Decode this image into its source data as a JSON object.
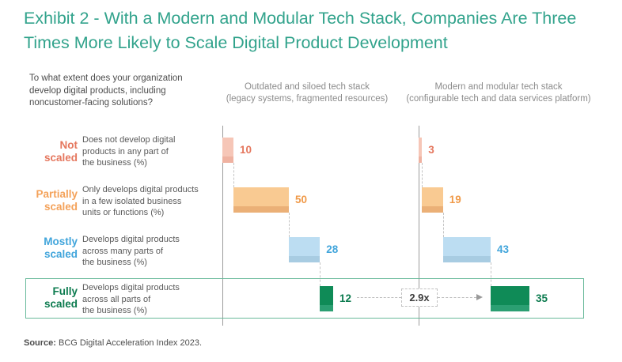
{
  "title": "Exhibit 2 - With a Modern and Modular Tech Stack, Companies Are Three\nTimes More Likely to Scale Digital Product Development",
  "question": "To what extent does your organization\ndevelop digital products, including\nnoncustomer-facing solutions?",
  "columns": [
    {
      "title": "Outdated and siloed tech stack\n(legacy systems, fragmented resources)"
    },
    {
      "title": "Modern and modular tech stack\n(configurable tech and data services platform)"
    }
  ],
  "rows": [
    {
      "label": "Not\nscaled",
      "description": "Does not develop digital\nproducts in any part of\nthe business (%)",
      "label_color": "#E5775E",
      "bar_color": "#F6C6B7",
      "band_color": "#EFB2A1",
      "value_color": "#E5775E"
    },
    {
      "label": "Partially\nscaled",
      "description": "Only develops digital products\nin a few isolated business\nunits or functions (%)",
      "label_color": "#F4A25A",
      "bar_color": "#F9CA92",
      "band_color": "#EBB077",
      "value_color": "#F09A49"
    },
    {
      "label": "Mostly\nscaled",
      "description": "Develops digital products\nacross many parts of\nthe business (%)",
      "label_color": "#41A5DB",
      "bar_color": "#BCDDF2",
      "band_color": "#A8CCE2",
      "value_color": "#41A5DB"
    },
    {
      "label": "Fully\nscaled",
      "description": "Develops digital products\nacross all parts of\nthe business (%)",
      "label_color": "#0C7B4F",
      "bar_color": "#0F8B57",
      "band_color": "#2B9F72",
      "value_color": "#0C7B4F"
    }
  ],
  "chart_data": {
    "type": "bar",
    "subtype": "waterfall",
    "orientation": "horizontal",
    "title": "Exhibit 2 - With a Modern and Modular Tech Stack, Companies Are Three Times More Likely to Scale Digital Product Development",
    "categories": [
      "Not scaled",
      "Partially scaled",
      "Mostly scaled",
      "Fully scaled"
    ],
    "series": [
      {
        "name": "Outdated and siloed tech stack",
        "values": [
          10,
          50,
          28,
          12
        ]
      },
      {
        "name": "Modern and modular tech stack",
        "values": [
          3,
          19,
          43,
          35
        ]
      }
    ],
    "unit": "%",
    "xlim": [
      0,
      100
    ],
    "annotation": "2.9x",
    "legend_position": "none",
    "grid": false
  },
  "highlight": {
    "row": "Fully scaled",
    "box_color": "#69BA9B"
  },
  "source": {
    "label": "Source:",
    "text": " BCG Digital Acceleration Index 2023."
  }
}
